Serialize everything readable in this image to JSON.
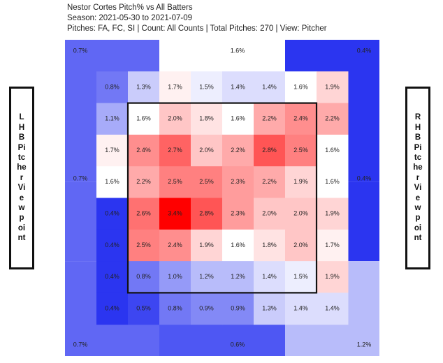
{
  "chart_data": {
    "type": "heatmap",
    "title": "Nestor Cortes Pitch% vs All Batters",
    "season": "Season: 2021-05-30 to 2021-07-09",
    "pitches_info": "Pitches: FA, FC, SI | Count: All Counts | Total Pitches: 270 | View: Pitcher",
    "units": "%",
    "color_scale": {
      "low": "#2b35f0",
      "mid": "#ffffff",
      "high": "#ff0000",
      "low_value": 0.4,
      "mid_value": 1.6,
      "high_value": 3.4
    },
    "outer_zones": [
      {
        "name": "top-left",
        "value": 0.7,
        "label": "0.7%"
      },
      {
        "name": "top-middle",
        "value": 1.6,
        "label": "1.6%"
      },
      {
        "name": "top-right",
        "value": 0.4,
        "label": "0.4%"
      },
      {
        "name": "left-middle",
        "value": 0.7,
        "label": "0.7%"
      },
      {
        "name": "right-middle",
        "value": 0.4,
        "label": "0.4%"
      },
      {
        "name": "bottom-left",
        "value": 0.7,
        "label": "0.7%"
      },
      {
        "name": "bottom-middle",
        "value": 0.6,
        "label": "0.6%"
      },
      {
        "name": "bottom-right",
        "value": 1.2,
        "label": "1.2%"
      }
    ],
    "grid": [
      [
        0.8,
        1.3,
        1.7,
        1.5,
        1.4,
        1.4,
        1.6,
        1.9
      ],
      [
        1.1,
        1.6,
        2.0,
        1.8,
        1.6,
        2.2,
        2.4,
        2.2
      ],
      [
        1.7,
        2.4,
        2.7,
        2.0,
        2.2,
        2.8,
        2.5,
        1.6
      ],
      [
        1.6,
        2.2,
        2.5,
        2.5,
        2.3,
        2.2,
        1.9,
        1.6
      ],
      [
        0.4,
        2.6,
        3.4,
        2.8,
        2.3,
        2.0,
        2.0,
        1.9
      ],
      [
        0.4,
        2.5,
        2.4,
        1.9,
        1.6,
        1.8,
        2.0,
        1.7
      ],
      [
        0.4,
        0.8,
        1.0,
        1.2,
        1.2,
        1.4,
        1.5,
        1.9
      ],
      [
        0.4,
        0.5,
        0.8,
        0.9,
        0.9,
        1.3,
        1.4,
        1.4
      ]
    ],
    "strike_zone": "rows 2-7, columns 2-7"
  },
  "labels": {
    "lhb": "LHB Pitcher Viewpoint",
    "rhb": "RHB Pitcher Viewpoint"
  }
}
